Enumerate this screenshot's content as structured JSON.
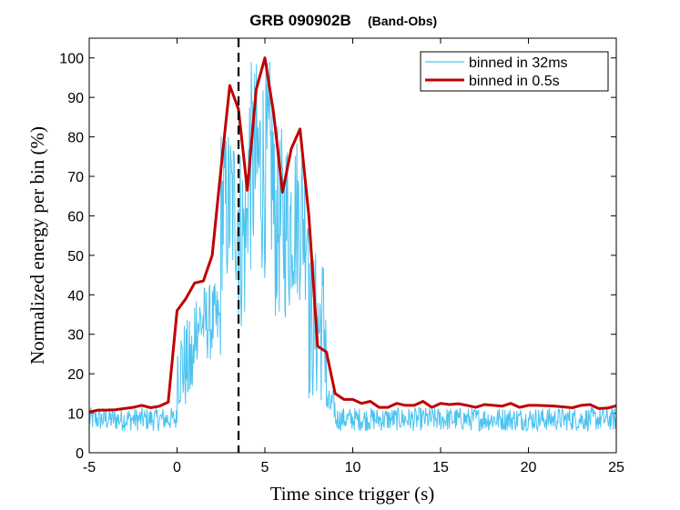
{
  "chart_data": {
    "type": "line",
    "title": "GRB 090902B",
    "subtitle": "(Band-Obs)",
    "xlabel": "Time since trigger (s)",
    "ylabel": "Normalized energy per bin (%)",
    "xlim": [
      -5,
      25
    ],
    "ylim": [
      0,
      105
    ],
    "xticks": [
      -5,
      0,
      5,
      10,
      15,
      20,
      25
    ],
    "yticks": [
      0,
      10,
      20,
      30,
      40,
      50,
      60,
      70,
      80,
      90,
      100
    ],
    "grid": false,
    "legend_position": "top-right",
    "trigger_marker_x": 3.5,
    "series": [
      {
        "name": "binned in 32ms",
        "color": "#4dc3f0",
        "segments": [
          {
            "t0": -5,
            "t1": 0,
            "base": 8.5,
            "amp": 3
          },
          {
            "t0": 0,
            "t1": 1,
            "base": 22,
            "amp": 12
          },
          {
            "t0": 1,
            "t1": 2.5,
            "base": 33,
            "amp": 10
          },
          {
            "t0": 2.5,
            "t1": 3.5,
            "base": 62,
            "amp": 22
          },
          {
            "t0": 3.5,
            "t1": 4.0,
            "base": 55,
            "amp": 25
          },
          {
            "t0": 4.0,
            "t1": 5.5,
            "base": 72,
            "amp": 28
          },
          {
            "t0": 5.5,
            "t1": 6.5,
            "base": 58,
            "amp": 25
          },
          {
            "t0": 6.5,
            "t1": 7.5,
            "base": 60,
            "amp": 22
          },
          {
            "t0": 7.5,
            "t1": 8.5,
            "base": 32,
            "amp": 20
          },
          {
            "t0": 8.5,
            "t1": 9,
            "base": 12,
            "amp": 4
          },
          {
            "t0": 9,
            "t1": 25,
            "base": 8.5,
            "amp": 3
          }
        ]
      },
      {
        "name": "binned in 0.5s",
        "color": "#c00000",
        "x": [
          -5,
          -4.5,
          -4,
          -3.5,
          -3,
          -2.5,
          -2,
          -1.5,
          -1,
          -0.5,
          0,
          0.5,
          1,
          1.5,
          2,
          2.5,
          3,
          3.5,
          4,
          4.5,
          5,
          5.5,
          6,
          6.5,
          7,
          7.5,
          8,
          8.5,
          9,
          9.5,
          10,
          10.5,
          11,
          11.5,
          12,
          12.5,
          13,
          13.5,
          14,
          14.5,
          15,
          15.5,
          16,
          16.5,
          17,
          17.5,
          18,
          18.5,
          19,
          19.5,
          20,
          20.5,
          21,
          21.5,
          22,
          22.5,
          23,
          23.5,
          24,
          24.5,
          25
        ],
        "y": [
          10.3,
          10.8,
          10.8,
          10.9,
          11.2,
          11.5,
          12.0,
          11.4,
          11.8,
          12.8,
          36.0,
          39.0,
          43.0,
          43.5,
          50.0,
          72.0,
          93.0,
          87.0,
          66.5,
          92.0,
          100.0,
          86.0,
          66.0,
          77.0,
          82.0,
          60.0,
          27.0,
          25.5,
          15.0,
          13.5,
          13.5,
          12.5,
          13.0,
          11.5,
          11.5,
          12.5,
          12.0,
          12.0,
          13.0,
          11.5,
          12.5,
          12.2,
          12.4,
          12.0,
          11.5,
          12.2,
          12.0,
          11.8,
          12.5,
          11.5,
          12.0,
          12.0,
          11.9,
          11.8,
          11.6,
          11.4,
          12.0,
          12.2,
          11.2,
          11.3,
          11.9
        ]
      }
    ]
  }
}
